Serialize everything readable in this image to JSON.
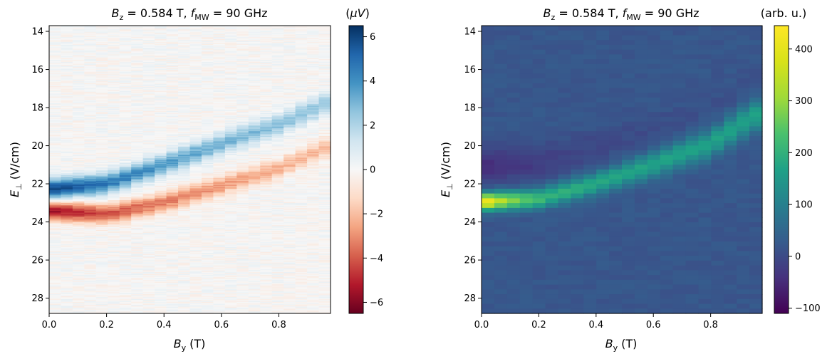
{
  "chart_data": [
    {
      "type": "heatmap",
      "title": "B_z = 0.584 T,  f_MW = 90 GHz",
      "title_parts": {
        "b_sym": "B",
        "b_sub": "z",
        "b_val": " = 0.584 T,  ",
        "f_sym": "f",
        "f_sub": "MW",
        "f_val": " = 90 GHz"
      },
      "xlabel": "B_y (T)",
      "xlabel_parts": {
        "sym": "B",
        "sub": "y",
        "unit": " (T)"
      },
      "ylabel": "E_⊥ (V/cm)",
      "ylabel_parts": {
        "sym": "E",
        "sub": "⊥",
        "unit": " (V/cm)"
      },
      "xlim": [
        0.0,
        0.98
      ],
      "ylim": [
        28.8,
        13.7
      ],
      "xticks": [
        0.0,
        0.2,
        0.4,
        0.6,
        0.8
      ],
      "xtick_labels": [
        "0.0",
        "0.2",
        "0.4",
        "0.6",
        "0.8"
      ],
      "yticks": [
        14,
        16,
        18,
        20,
        22,
        24,
        26,
        28
      ],
      "ytick_labels": [
        "14",
        "16",
        "18",
        "20",
        "22",
        "24",
        "26",
        "28"
      ],
      "colormap": "RdBu",
      "colorbar": {
        "label": "(μV)",
        "label_parts": {
          "open": "(",
          "sym": "μV",
          "close": ")"
        },
        "range": [
          -6.5,
          6.5
        ],
        "ticks": [
          6,
          4,
          2,
          0,
          -2,
          -4,
          -6
        ],
        "tick_labels": [
          "6",
          "4",
          "2",
          "0",
          "−2",
          "−4",
          "−6"
        ]
      },
      "features": [
        {
          "name": "positive-band",
          "E_at_By": [
            [
              0.0,
              22.3
            ],
            [
              0.2,
              22.0
            ],
            [
              0.4,
              21.0
            ],
            [
              0.6,
              19.9
            ],
            [
              0.8,
              18.9
            ],
            [
              0.98,
              17.7
            ]
          ],
          "peak": 6.0
        },
        {
          "name": "negative-band",
          "E_at_By": [
            [
              0.0,
              23.4
            ],
            [
              0.2,
              23.6
            ],
            [
              0.4,
              23.0
            ],
            [
              0.6,
              22.1
            ],
            [
              0.8,
              21.2
            ],
            [
              0.98,
              20.0
            ]
          ],
          "peak": -5.5
        }
      ],
      "grid": false
    },
    {
      "type": "heatmap",
      "title": "B_z = 0.584 T,  f_MW = 90 GHz",
      "title_parts": {
        "b_sym": "B",
        "b_sub": "z",
        "b_val": " = 0.584 T,  ",
        "f_sym": "f",
        "f_sub": "MW",
        "f_val": " = 90 GHz"
      },
      "xlabel": "B_y (T)",
      "xlabel_parts": {
        "sym": "B",
        "sub": "y",
        "unit": " (T)"
      },
      "ylabel": "E_⊥ (V/cm)",
      "ylabel_parts": {
        "sym": "E",
        "sub": "⊥",
        "unit": " (V/cm)"
      },
      "xlim": [
        0.0,
        0.98
      ],
      "ylim": [
        28.8,
        13.7
      ],
      "xticks": [
        0.0,
        0.2,
        0.4,
        0.6,
        0.8
      ],
      "xtick_labels": [
        "0.0",
        "0.2",
        "0.4",
        "0.6",
        "0.8"
      ],
      "yticks": [
        14,
        16,
        18,
        20,
        22,
        24,
        26,
        28
      ],
      "ytick_labels": [
        "14",
        "16",
        "18",
        "20",
        "22",
        "24",
        "26",
        "28"
      ],
      "colormap": "viridis",
      "colorbar": {
        "label": "(arb. u.)",
        "range": [
          -110,
          445
        ],
        "ticks": [
          400,
          300,
          200,
          100,
          0,
          -100
        ],
        "tick_labels": [
          "400",
          "300",
          "200",
          "100",
          "0",
          "−100"
        ]
      },
      "features": [
        {
          "name": "resonance-line",
          "E_at_By": [
            [
              0.0,
              22.95
            ],
            [
              0.2,
              22.8
            ],
            [
              0.4,
              22.0
            ],
            [
              0.6,
              21.0
            ],
            [
              0.8,
              19.9
            ],
            [
              0.98,
              18.2
            ]
          ],
          "peak": 440,
          "tail": 150
        }
      ],
      "grid": false
    }
  ]
}
